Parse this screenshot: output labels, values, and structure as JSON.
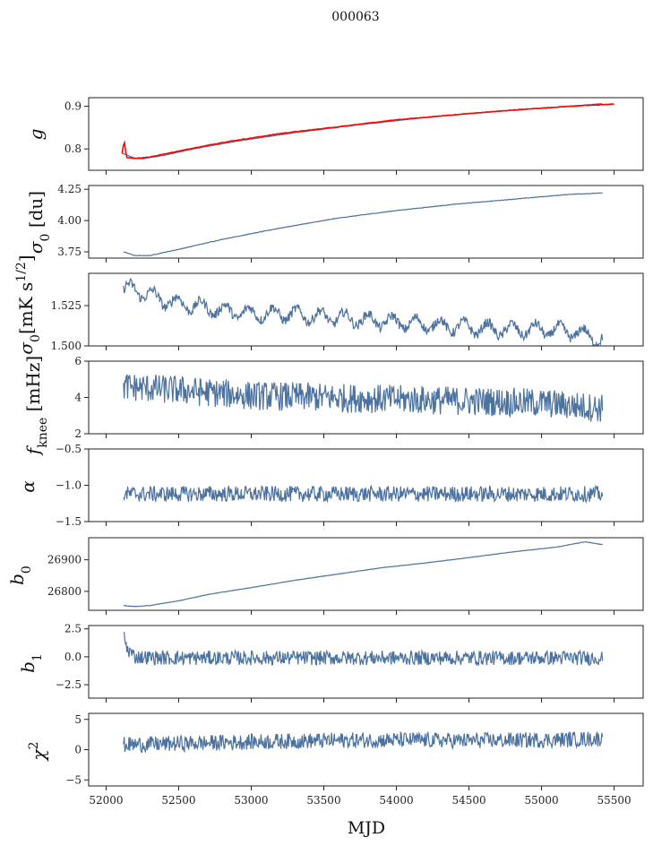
{
  "title": "000063",
  "xlabel": "MJD",
  "x_ticks": [
    52000,
    52500,
    53000,
    53500,
    54000,
    54500,
    55000,
    55500
  ],
  "xlim": [
    51880,
    55700
  ],
  "line_color": "#4c72a0",
  "overlay_color": "#ff0000",
  "chart_data": [
    {
      "type": "line",
      "ylabel": "g",
      "ylim": [
        0.75,
        0.92
      ],
      "yticks": [
        0.8,
        0.9
      ],
      "tick_labels": [
        "0.8",
        "0.9"
      ],
      "x_range": [
        52110,
        55420
      ],
      "series": [
        {
          "values_x": [
            52110,
            52200,
            52250,
            52400,
            52600,
            52900,
            53300,
            53700,
            54100,
            54500,
            55000,
            55420
          ],
          "values_y": [
            0.79,
            0.778,
            0.777,
            0.785,
            0.8,
            0.818,
            0.838,
            0.855,
            0.87,
            0.883,
            0.895,
            0.906
          ]
        }
      ],
      "overlay": {
        "x": [
          52110,
          52125,
          52140,
          52200,
          52300,
          52500,
          52800,
          53200,
          53600,
          54000,
          54400,
          54800,
          55200,
          55500
        ],
        "y": [
          0.79,
          0.82,
          0.78,
          0.778,
          0.781,
          0.795,
          0.815,
          0.836,
          0.852,
          0.868,
          0.88,
          0.891,
          0.9,
          0.905
        ]
      }
    },
    {
      "type": "line",
      "ylabel": "σ0 [du]",
      "ylim": [
        3.7,
        4.28
      ],
      "yticks": [
        3.75,
        4.0,
        4.25
      ],
      "tick_labels": [
        "3.75",
        "4.00",
        "4.25"
      ],
      "x_range": [
        52120,
        55420
      ],
      "series": [
        {
          "values_x": [
            52120,
            52200,
            52300,
            52500,
            52800,
            53200,
            53600,
            54000,
            54400,
            54800,
            55200,
            55420
          ],
          "values_y": [
            3.75,
            3.72,
            3.72,
            3.77,
            3.85,
            3.94,
            4.02,
            4.08,
            4.13,
            4.17,
            4.21,
            4.22
          ]
        }
      ]
    },
    {
      "type": "line",
      "ylabel": "σ0[mK s^1/2]",
      "ylim": [
        1.5,
        1.545
      ],
      "yticks": [
        1.5,
        1.525
      ],
      "tick_labels": [
        "1.500",
        "1.525"
      ],
      "x_range": [
        52120,
        55420
      ],
      "series": [
        {
          "values_x": [
            52120,
            52200,
            52400,
            52600,
            52800,
            53000,
            53200,
            53500,
            53800,
            54100,
            54400,
            54700,
            55000,
            55200,
            55420
          ],
          "values_y": [
            1.535,
            1.535,
            1.528,
            1.525,
            1.522,
            1.52,
            1.52,
            1.518,
            1.516,
            1.514,
            1.512,
            1.51,
            1.51,
            1.509,
            1.504
          ]
        }
      ]
    },
    {
      "type": "line",
      "ylabel": "f_knee [mHz]",
      "ylim": [
        2,
        6
      ],
      "yticks": [
        2,
        4,
        6
      ],
      "tick_labels": [
        "2",
        "4",
        "6"
      ],
      "x_range": [
        52120,
        55420
      ],
      "series": [
        {
          "values_x": [
            52120,
            52500,
            53000,
            53500,
            54000,
            54500,
            55000,
            55420
          ],
          "values_y": [
            4.6,
            4.4,
            4.1,
            4.0,
            3.9,
            3.8,
            3.7,
            3.4
          ]
        }
      ]
    },
    {
      "type": "line",
      "ylabel": "α",
      "ylim": [
        -1.5,
        -0.5
      ],
      "yticks": [
        -1.5,
        -1.0,
        -0.5
      ],
      "tick_labels": [
        "−1.5",
        "−1.0",
        "−0.5"
      ],
      "x_range": [
        52120,
        55420
      ],
      "series": [
        {
          "values_x": [
            52120,
            55420
          ],
          "values_y": [
            -1.12,
            -1.12
          ]
        }
      ]
    },
    {
      "type": "line",
      "ylabel": "b0",
      "ylim": [
        26740,
        26970
      ],
      "yticks": [
        26800,
        26900
      ],
      "tick_labels": [
        "26800",
        "26900"
      ],
      "x_range": [
        52120,
        55420
      ],
      "series": [
        {
          "values_x": [
            52120,
            52200,
            52300,
            52500,
            52700,
            53000,
            53300,
            53600,
            53900,
            54200,
            54500,
            54800,
            55100,
            55300,
            55420
          ],
          "values_y": [
            26755,
            26752,
            26755,
            26770,
            26790,
            26812,
            26835,
            26855,
            26875,
            26890,
            26907,
            26925,
            26940,
            26957,
            26948
          ]
        }
      ]
    },
    {
      "type": "line",
      "ylabel": "b1",
      "ylim": [
        -3.7,
        2.8
      ],
      "yticks": [
        -2.5,
        0.0,
        2.5
      ],
      "tick_labels": [
        "−2.5",
        "0.0",
        "2.5"
      ],
      "x_range": [
        52120,
        55420
      ],
      "series": [
        {
          "values_x": [
            52120,
            52140,
            52200,
            52400,
            55420
          ],
          "values_y": [
            2.3,
            0.8,
            0.0,
            -0.1,
            -0.1
          ]
        }
      ]
    },
    {
      "type": "line",
      "ylabel": "χ2",
      "ylim": [
        -6,
        6
      ],
      "yticks": [
        -5,
        0,
        5
      ],
      "tick_labels": [
        "−5",
        "0",
        "5"
      ],
      "x_range": [
        52120,
        55420
      ],
      "series": [
        {
          "values_x": [
            52120,
            52500,
            53000,
            53500,
            54000,
            54500,
            55000,
            55420
          ],
          "values_y": [
            0.8,
            1.0,
            1.3,
            1.5,
            1.6,
            1.5,
            1.6,
            1.8
          ]
        }
      ]
    }
  ]
}
